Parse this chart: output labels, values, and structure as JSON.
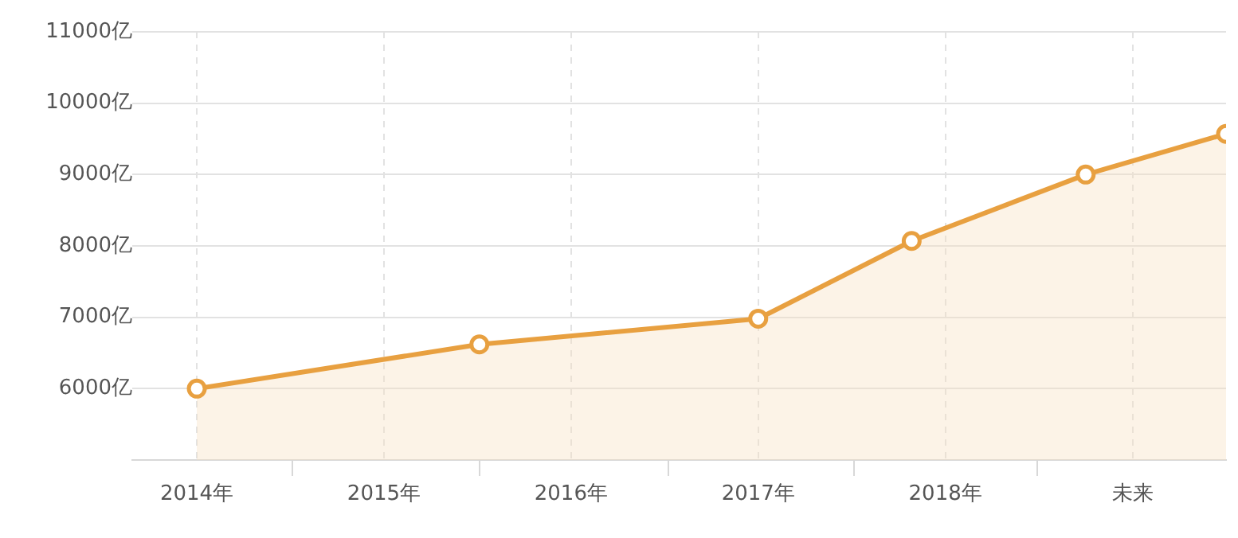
{
  "chart_data": {
    "type": "area",
    "x": [
      2014,
      2015.51,
      2017,
      2017.82,
      2018.75,
      2019.5
    ],
    "series": [
      {
        "color": "#e8a040",
        "values": [
          6000,
          6620,
          6980,
          8070,
          9000,
          9570
        ]
      }
    ],
    "xlim": [
      2013.655,
      2019.5
    ],
    "xticks": [
      {
        "value": 2014,
        "label": "2014年"
      },
      {
        "value": 2014.51,
        "label": null
      },
      {
        "value": 2015,
        "label": "2015年"
      },
      {
        "value": 2015.51,
        "label": null
      },
      {
        "value": 2016,
        "label": "2016年"
      },
      {
        "value": 2016.52,
        "label": null
      },
      {
        "value": 2017,
        "label": "2017年"
      },
      {
        "value": 2017.51,
        "label": null
      },
      {
        "value": 2018,
        "label": "2018年"
      },
      {
        "value": 2018.49,
        "label": null
      },
      {
        "value": 2019,
        "label": "未来"
      }
    ],
    "ylim": [
      5000,
      11000
    ],
    "yticks": [
      {
        "value": 6000,
        "label": "6000亿"
      },
      {
        "value": 7000,
        "label": "7000亿"
      },
      {
        "value": 8000,
        "label": "8000亿"
      },
      {
        "value": 9000,
        "label": "9000亿"
      },
      {
        "value": 10000,
        "label": "10000亿"
      },
      {
        "value": 11000,
        "label": "11000亿"
      }
    ],
    "grid": true,
    "marker": "circle",
    "line_style": "solid",
    "legend": false
  }
}
